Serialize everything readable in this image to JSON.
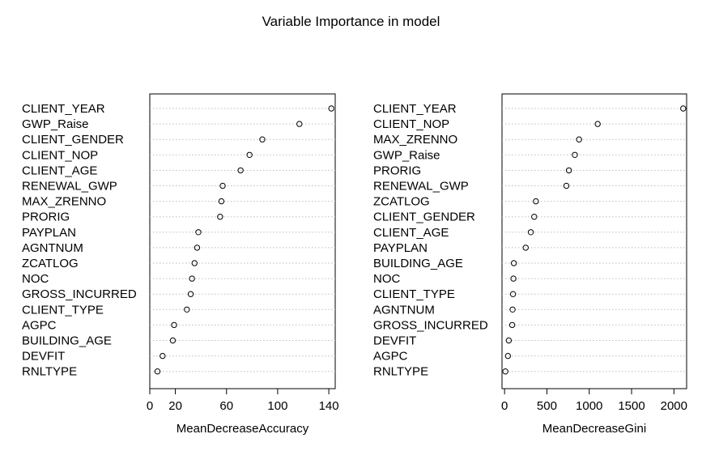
{
  "title": "Variable Importance in model",
  "chart_data": [
    {
      "type": "scatter",
      "subtype": "dotchart",
      "xlabel": "MeanDecreaseAccuracy",
      "ylabel": "",
      "xlim": [
        0,
        145
      ],
      "xticks": [
        0,
        20,
        60,
        100,
        140
      ],
      "grid": "horizontal dotted",
      "categories": [
        "CLIENT_YEAR",
        "GWP_Raise",
        "CLIENT_GENDER",
        "CLIENT_NOP",
        "CLIENT_AGE",
        "RENEWAL_GWP",
        "MAX_ZRENNO",
        "PRORIG",
        "PAYPLAN",
        "AGNTNUM",
        "ZCATLOG",
        "NOC",
        "GROSS_INCURRED",
        "CLIENT_TYPE",
        "AGPC",
        "BUILDING_AGE",
        "DEVFIT",
        "RNLTYPE"
      ],
      "values": [
        142,
        117,
        88,
        78,
        71,
        57,
        56,
        55,
        38,
        37,
        35,
        33,
        32,
        29,
        19,
        18,
        10,
        6
      ]
    },
    {
      "type": "scatter",
      "subtype": "dotchart",
      "xlabel": "MeanDecreaseGini",
      "ylabel": "",
      "xlim": [
        -30,
        2150
      ],
      "xticks": [
        0,
        500,
        1000,
        1500,
        2000
      ],
      "grid": "horizontal dotted",
      "categories": [
        "CLIENT_YEAR",
        "CLIENT_NOP",
        "MAX_ZRENNO",
        "GWP_Raise",
        "PRORIG",
        "RENEWAL_GWP",
        "ZCATLOG",
        "CLIENT_GENDER",
        "CLIENT_AGE",
        "PAYPLAN",
        "BUILDING_AGE",
        "NOC",
        "CLIENT_TYPE",
        "AGNTNUM",
        "GROSS_INCURRED",
        "DEVFIT",
        "AGPC",
        "RNLTYPE"
      ],
      "values": [
        2110,
        1100,
        880,
        830,
        760,
        730,
        370,
        350,
        310,
        250,
        110,
        105,
        100,
        95,
        90,
        50,
        40,
        10
      ]
    }
  ]
}
